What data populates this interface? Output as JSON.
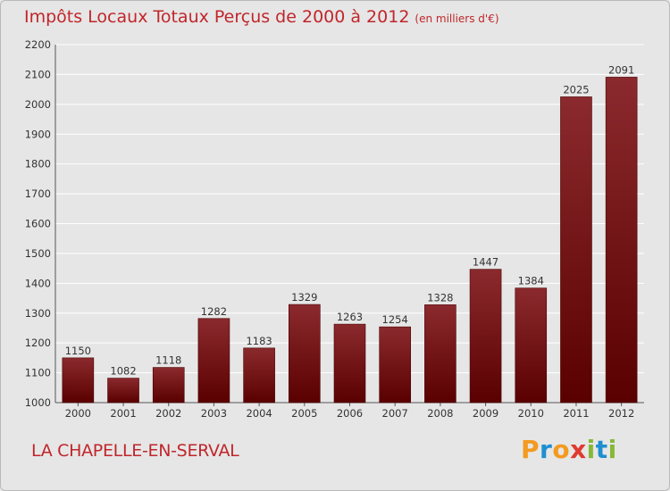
{
  "header": {
    "title": "Impôts Locaux Totaux Perçus de 2000 à 2012",
    "unit": "(en milliers d'€)"
  },
  "footer": {
    "commune": "LA CHAPELLE-EN-SERVAL",
    "logo": "Proxiti"
  },
  "colors": {
    "accent": "#c0262b",
    "bar_top": "#8b2a2e",
    "bar_bottom": "#5a0000",
    "logo_letters": [
      "#f39a1f",
      "#1f8fd0",
      "#f39a1f",
      "#e03a2f",
      "#86b837",
      "#1f8fd0",
      "#86b837"
    ]
  },
  "chart_data": {
    "type": "bar",
    "title": "Impôts Locaux Totaux Perçus de 2000 à 2012 (en milliers d'€)",
    "xlabel": "",
    "ylabel": "",
    "categories": [
      "2000",
      "2001",
      "2002",
      "2003",
      "2004",
      "2005",
      "2006",
      "2007",
      "2008",
      "2009",
      "2010",
      "2011",
      "2012"
    ],
    "values": [
      1150,
      1082,
      1118,
      1282,
      1183,
      1329,
      1263,
      1254,
      1328,
      1447,
      1384,
      2025,
      2091
    ],
    "ylim": [
      1000,
      2200
    ],
    "yticks": [
      1000,
      1100,
      1200,
      1300,
      1400,
      1500,
      1600,
      1700,
      1800,
      1900,
      2000,
      2100,
      2200
    ],
    "grid": true
  }
}
